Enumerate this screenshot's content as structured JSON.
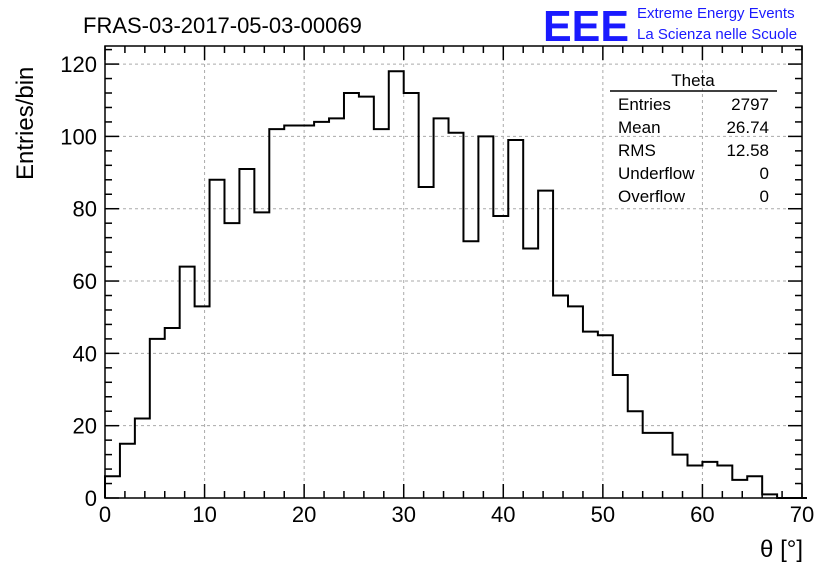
{
  "chart_data": {
    "type": "bar",
    "title": "FRAS-03-2017-05-03-00069",
    "xlabel": "θ [°]",
    "ylabel": "Entries/bin",
    "xlim": [
      0,
      70
    ],
    "ylim": [
      0,
      125
    ],
    "x_ticks": [
      "0",
      "10",
      "20",
      "30",
      "40",
      "50",
      "60",
      "70"
    ],
    "y_ticks": [
      "0",
      "20",
      "40",
      "60",
      "80",
      "100",
      "120"
    ],
    "grid": true,
    "bin_width": 1.5,
    "x_start": 0,
    "values": [
      6,
      15,
      22,
      44,
      47,
      64,
      53,
      88,
      76,
      91,
      79,
      102,
      103,
      103,
      104,
      105,
      112,
      111,
      102,
      118,
      112,
      86,
      105,
      101,
      71,
      100,
      78,
      99,
      69,
      85,
      56,
      53,
      46,
      45,
      34,
      24,
      18,
      18,
      12,
      9,
      10,
      9,
      5,
      6,
      1,
      0,
      0
    ],
    "stats": {
      "title": "Theta",
      "rows": [
        {
          "label": "Entries",
          "value": "2797"
        },
        {
          "label": "Mean",
          "value": "26.74"
        },
        {
          "label": "RMS",
          "value": "12.58"
        },
        {
          "label": "Underflow",
          "value": "0"
        },
        {
          "label": "Overflow",
          "value": "0"
        }
      ]
    }
  },
  "logo": {
    "mark": "EEE",
    "line1": "Extreme Energy Events",
    "line2": "La Scienza nelle Scuole",
    "color": "#1a1aff"
  }
}
